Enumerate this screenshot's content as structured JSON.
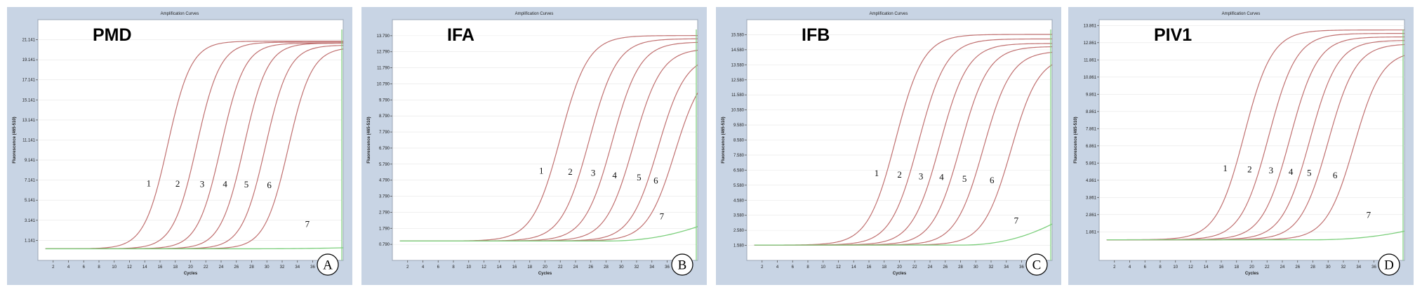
{
  "figure": {
    "panel_title": "Amplification Curves",
    "x_label": "Cycles",
    "y_label": "Fluorescence (465-510)",
    "x_ticks": [
      2,
      4,
      6,
      8,
      10,
      12,
      14,
      16,
      18,
      20,
      22,
      24,
      26,
      28,
      30,
      32,
      34,
      36,
      38
    ]
  },
  "colors": {
    "frame_bg": "#c8d4e4",
    "plot_bg": "#ffffff",
    "positive_curve": "#c07070",
    "negative_curve": "#7ccf7c",
    "grid": "#e6e6e6"
  },
  "chart_data": [
    {
      "type": "line",
      "gene": "PMD",
      "letter": "A",
      "title": "Amplification Curves",
      "xlabel": "Cycles",
      "ylabel": "Fluorescence (465-510)",
      "xlim": [
        0,
        40
      ],
      "ylim": [
        -0.86,
        23.14
      ],
      "y_ticks": [
        "1.141",
        "3.141",
        "5.141",
        "7.141",
        "9.141",
        "11.141",
        "13.141",
        "15.141",
        "17.141",
        "19.141",
        "21.141"
      ],
      "baseline": 0.3,
      "curve_labels": [
        "1",
        "2",
        "3",
        "4",
        "5",
        "6",
        "7"
      ],
      "series": [
        {
          "label": "1",
          "midpoint": 17.0,
          "plateau": 21.0,
          "slope": 0.65
        },
        {
          "label": "2",
          "midpoint": 20.8,
          "plateau": 20.9,
          "slope": 0.65
        },
        {
          "label": "3",
          "midpoint": 24.0,
          "plateau": 20.8,
          "slope": 0.65
        },
        {
          "label": "4",
          "midpoint": 27.0,
          "plateau": 20.8,
          "slope": 0.65
        },
        {
          "label": "5",
          "midpoint": 29.8,
          "plateau": 20.6,
          "slope": 0.65
        },
        {
          "label": "6",
          "midpoint": 32.8,
          "plateau": 20.4,
          "slope": 0.65
        },
        {
          "label": "7",
          "negative": true,
          "endpoint": 0.4
        }
      ]
    },
    {
      "type": "line",
      "gene": "IFA",
      "letter": "B",
      "title": "Amplification Curves",
      "xlabel": "Cycles",
      "ylabel": "Fluorescence (465-510)",
      "xlim": [
        0,
        40
      ],
      "ylim": [
        -0.21,
        14.79
      ],
      "y_ticks": [
        "0.790",
        "1.790",
        "2.790",
        "3.790",
        "4.790",
        "5.790",
        "6.790",
        "7.790",
        "8.790",
        "9.790",
        "10.790",
        "11.790",
        "12.790",
        "13.790"
      ],
      "baseline": 1.0,
      "curve_labels": [
        "1",
        "2",
        "3",
        "4",
        "5",
        "6",
        "7"
      ],
      "series": [
        {
          "label": "1",
          "midpoint": 22.0,
          "plateau": 13.8,
          "slope": 0.55
        },
        {
          "label": "2",
          "midpoint": 25.8,
          "plateau": 13.6,
          "slope": 0.55
        },
        {
          "label": "3",
          "midpoint": 28.8,
          "plateau": 13.4,
          "slope": 0.55
        },
        {
          "label": "4",
          "midpoint": 31.6,
          "plateau": 13.0,
          "slope": 0.55
        },
        {
          "label": "5",
          "midpoint": 34.8,
          "plateau": 12.6,
          "slope": 0.55
        },
        {
          "label": "6",
          "midpoint": 37.0,
          "plateau": 12.0,
          "slope": 0.55
        },
        {
          "label": "7",
          "negative": true,
          "endpoint": 1.9
        }
      ]
    },
    {
      "type": "line",
      "gene": "IFB",
      "letter": "C",
      "title": "Amplification Curves",
      "xlabel": "Cycles",
      "ylabel": "Fluorescence (465-510)",
      "xlim": [
        0,
        40
      ],
      "ylim": [
        0.58,
        16.58
      ],
      "y_ticks": [
        "1.580",
        "2.580",
        "3.580",
        "4.580",
        "5.580",
        "6.580",
        "7.580",
        "8.580",
        "9.580",
        "10.580",
        "11.580",
        "12.580",
        "13.580",
        "14.580",
        "15.580"
      ],
      "baseline": 1.6,
      "curve_labels": [
        "1",
        "2",
        "3",
        "4",
        "5",
        "6",
        "7"
      ],
      "series": [
        {
          "label": "1",
          "midpoint": 19.5,
          "plateau": 15.6,
          "slope": 0.55
        },
        {
          "label": "2",
          "midpoint": 22.5,
          "plateau": 15.3,
          "slope": 0.55
        },
        {
          "label": "3",
          "midpoint": 25.3,
          "plateau": 15.0,
          "slope": 0.55
        },
        {
          "label": "4",
          "midpoint": 28.0,
          "plateau": 14.8,
          "slope": 0.55
        },
        {
          "label": "5",
          "midpoint": 31.0,
          "plateau": 14.5,
          "slope": 0.55
        },
        {
          "label": "6",
          "midpoint": 34.6,
          "plateau": 14.2,
          "slope": 0.55
        },
        {
          "label": "7",
          "negative": true,
          "endpoint": 3.0
        }
      ]
    },
    {
      "type": "line",
      "gene": "PIV1",
      "letter": "D",
      "title": "Amplification Curves",
      "xlabel": "Cycles",
      "ylabel": "Fluorescence (465-510)",
      "xlim": [
        0,
        40
      ],
      "ylim": [
        0.2,
        14.2
      ],
      "y_ticks": [
        "1.861",
        "2.861",
        "3.861",
        "4.861",
        "5.861",
        "6.861",
        "7.861",
        "8.861",
        "9.861",
        "10.861",
        "11.861",
        "12.861",
        "13.861"
      ],
      "baseline": 1.4,
      "curve_labels": [
        "1",
        "2",
        "3",
        "4",
        "5",
        "6",
        "7"
      ],
      "series": [
        {
          "label": "1",
          "midpoint": 19.0,
          "plateau": 13.6,
          "slope": 0.55
        },
        {
          "label": "2",
          "midpoint": 22.2,
          "plateau": 13.4,
          "slope": 0.55
        },
        {
          "label": "3",
          "midpoint": 25.0,
          "plateau": 13.2,
          "slope": 0.55
        },
        {
          "label": "4",
          "midpoint": 27.6,
          "plateau": 13.0,
          "slope": 0.55
        },
        {
          "label": "5",
          "midpoint": 30.0,
          "plateau": 12.8,
          "slope": 0.55
        },
        {
          "label": "6",
          "midpoint": 33.4,
          "plateau": 12.4,
          "slope": 0.55
        },
        {
          "label": "7",
          "negative": true,
          "endpoint": 1.9
        }
      ]
    }
  ]
}
